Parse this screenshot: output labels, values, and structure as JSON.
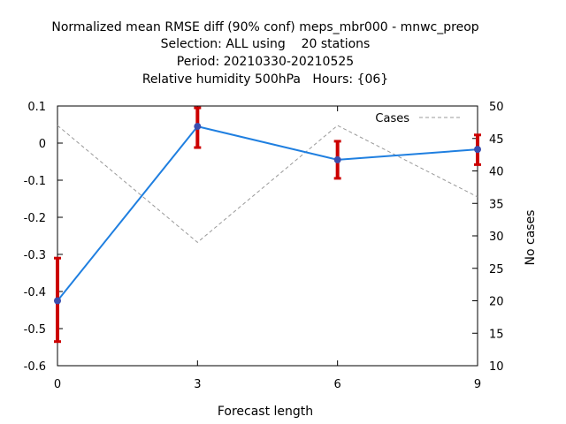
{
  "chart_data": {
    "type": "line",
    "title_lines": [
      "Normalized mean RMSE diff (90% conf) meps_mbr000 - mnwc_preop",
      "Selection: ALL using    20 stations",
      "Period: 20210330-20210525",
      "Relative humidity 500hPa   Hours: {06}"
    ],
    "xlabel": "Forecast length",
    "ylabel_right": "No cases",
    "x": [
      0,
      3,
      6,
      9
    ],
    "x_ticks": [
      "0",
      "3",
      "6",
      "9"
    ],
    "xlim": [
      0,
      9
    ],
    "ylim_left": [
      -0.6,
      0.1
    ],
    "y_ticks_left": [
      "-0.6",
      "-0.5",
      "-0.4",
      "-0.3",
      "-0.2",
      "-0.1",
      "0",
      "0.1"
    ],
    "ylim_right": [
      10,
      50
    ],
    "y_ticks_right": [
      "10",
      "15",
      "20",
      "25",
      "30",
      "35",
      "40",
      "45",
      "50"
    ],
    "series": [
      {
        "axis": "left",
        "color": "#1f7fe0",
        "marker_color": "#3a4fb0",
        "values": [
          -0.425,
          0.045,
          -0.045,
          -0.017
        ],
        "error_low": [
          -0.535,
          -0.012,
          -0.095,
          -0.058
        ],
        "error_high": [
          -0.31,
          0.095,
          0.005,
          0.022
        ],
        "error_color": "#cc0000"
      },
      {
        "name": "Cases",
        "axis": "right",
        "color": "#999999",
        "dashed": true,
        "values": [
          47,
          29,
          47,
          36
        ]
      }
    ],
    "legend_position": "top-right",
    "grid": false
  }
}
